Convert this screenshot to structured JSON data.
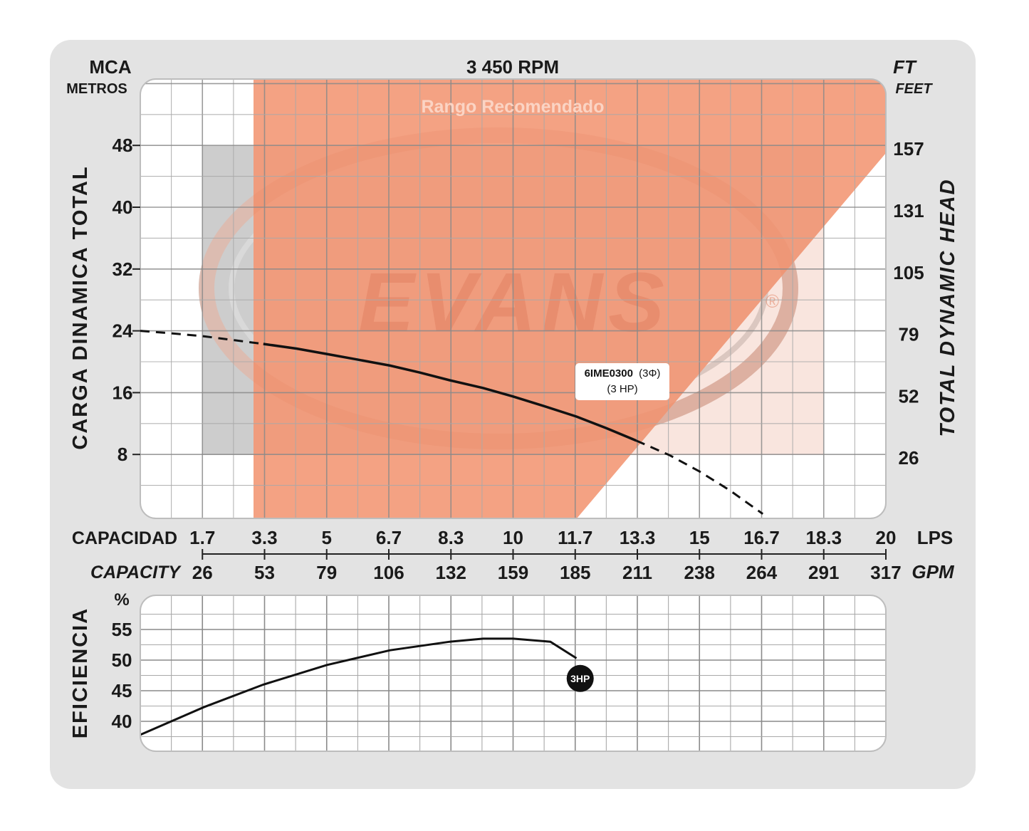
{
  "chart_data": [
    {
      "type": "line",
      "title": "3 450 RPM",
      "left_axis": {
        "unit": "MCA",
        "unit_sub": "METROS",
        "label": "CARGA DINAMICA TOTAL",
        "ticks": [
          8,
          16,
          24,
          32,
          40,
          48
        ],
        "range": [
          0,
          57
        ]
      },
      "right_axis": {
        "unit": "FT",
        "unit_sub": "FEET",
        "label": "TOTAL DYNAMIC HEAD",
        "ticks": [
          "26",
          "52",
          "79",
          "105",
          "131",
          "157"
        ]
      },
      "x_axis_top": {
        "label": "CAPACIDAD",
        "unit": "LPS",
        "ticks": [
          "1.7",
          "3.3",
          "5",
          "6.7",
          "8.3",
          "10",
          "11.7",
          "13.3",
          "15",
          "16.7",
          "18.3",
          "20"
        ]
      },
      "x_axis_bottom": {
        "label": "CAPACITY",
        "unit": "GPM",
        "ticks": [
          "26",
          "53",
          "79",
          "106",
          "132",
          "159",
          "185",
          "211",
          "238",
          "264",
          "291",
          "317"
        ]
      },
      "recommended_range": {
        "label": "Rango Recomendado",
        "color": "#f4a283"
      },
      "watermark": "EVANS",
      "series": [
        {
          "name": "6IME0300",
          "name_suffix": "(3Φ)",
          "sublabel": "(3 HP)",
          "x_lps": [
            0,
            0.8,
            1.7,
            2.5,
            3.3,
            4.2,
            5,
            5.8,
            6.7,
            7.5,
            8.3,
            9.2,
            10,
            10.8,
            11.7,
            12.5,
            13.3,
            14.2,
            15,
            15.8,
            16.7
          ],
          "y_m": [
            24,
            23.7,
            23.3,
            22.8,
            22.3,
            21.7,
            21.0,
            20.3,
            19.5,
            18.6,
            17.6,
            16.6,
            15.5,
            14.3,
            12.9,
            11.4,
            9.8,
            7.9,
            5.8,
            3.4,
            0.3
          ],
          "recommended_x_lps": [
            3.3,
            13.3
          ]
        }
      ]
    },
    {
      "type": "line",
      "y_axis": {
        "label": "EFICIENCIA",
        "unit": "%",
        "ticks": [
          40,
          45,
          50,
          55
        ],
        "range": [
          36,
          58
        ]
      },
      "series": [
        {
          "name": "3HP",
          "x_lps": [
            0,
            1.7,
            3.3,
            5,
            6.7,
            8.3,
            9.2,
            10,
            11,
            11.7
          ],
          "y_pct": [
            37.8,
            42.3,
            46.0,
            49.2,
            51.6,
            53.0,
            53.5,
            53.5,
            53.0,
            50.3
          ],
          "end_point": {
            "x_lps": 11.8,
            "y_pct": 47.0,
            "label": "3HP"
          }
        }
      ]
    }
  ]
}
